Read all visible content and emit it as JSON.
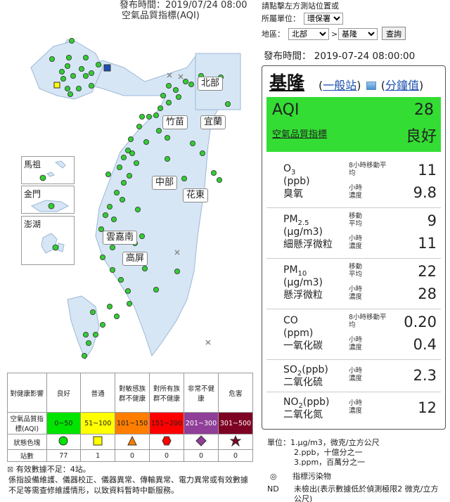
{
  "header": {
    "publish_time": "發布時間：2019/07/24 08:00",
    "subtitle": "空氣品質指標(AQI)"
  },
  "map": {
    "regions": {
      "north": "北部",
      "zhumiao": "竹苗",
      "yilan": "宜蘭",
      "central": "中部",
      "hualien": "花東",
      "yunchianan": "雲嘉南",
      "kaoping": "高屏"
    },
    "insets": {
      "matsu": "馬祖",
      "kinmen": "金門",
      "penghu": "澎湖"
    },
    "colors": {
      "good": "#33cc33",
      "moderate": "#ffff00",
      "selected": "#1b4faf",
      "land": "#d6e6f5"
    }
  },
  "legend": {
    "health_header": "對健康影響",
    "levels": [
      "良好",
      "普通",
      "對敏感族群不健康",
      "對所有族群不健康",
      "非常不健康",
      "危害"
    ],
    "aqi_label": "空氣品質指標(AQI)",
    "ranges": [
      "0~50",
      "51~100",
      "101~150",
      "151~200",
      "201~300",
      "301~500"
    ],
    "status_label": "狀態色塊",
    "count_label": "站數",
    "counts": [
      "77",
      "1",
      "0",
      "0",
      "0",
      "0"
    ],
    "colors": [
      "#00e400",
      "#ffff00",
      "#ff7e00",
      "#ff0000",
      "#8f3f97",
      "#7e0023"
    ],
    "symbols": [
      "circle",
      "square",
      "triangle",
      "hexagon",
      "diamond",
      "star"
    ]
  },
  "footer": {
    "invalid_note": "有效數據不足：4站。",
    "maintenance_note": "係指設備維護、儀器校正、儀器異常、傳輸異常、電力異常或有效數據不足等需查修維護情形，以致資料暫時中斷服務。"
  },
  "controls": {
    "instruction": "請點擊左方測站位置或",
    "agency_label": "所屬單位：",
    "agency_value": "環保署",
    "area_label": "地區：",
    "area_value": "北部",
    "arrow": ">",
    "station_value": "基隆",
    "query_button": "查詢"
  },
  "panel": {
    "publish_time": "發布時間： 2019-07-24 08:00:00",
    "station": "基隆",
    "link_general": "一般站",
    "link_minute": "分鐘值",
    "aqi_label": "AQI",
    "aqi_value": "28",
    "aqi_name": "空氣品質指標",
    "aqi_status": "良好",
    "pollutants": [
      {
        "name1": "O3",
        "unit": "(ppb)",
        "cname": "臭氧",
        "label1": "8小時移動平均",
        "val1": "11",
        "label2": "小時濃度",
        "val2": "9.8"
      },
      {
        "name1": "PM2.5",
        "unit": "(μg/m3)",
        "cname": "細懸浮微粒",
        "label1": "移動平均",
        "val1": "9",
        "label2": "小時濃度",
        "val2": "11"
      },
      {
        "name1": "PM10",
        "unit": "(μg/m3)",
        "cname": "懸浮微粒",
        "label1": "移動平均",
        "val1": "22",
        "label2": "小時濃度",
        "val2": "28"
      },
      {
        "name1": "CO",
        "unit": "(ppm)",
        "cname": "一氧化碳",
        "label1": "8小時移動平均",
        "val1": "0.20",
        "label2": "小時濃度",
        "val2": "0.4"
      }
    ],
    "so2": {
      "name": "SO2(ppb)",
      "cname": "二氧化硫",
      "label": "小時濃度",
      "val": "2.3"
    },
    "no2": {
      "name": "NO2(ppb)",
      "cname": "二氧化氮",
      "label": "小時濃度",
      "val": "12"
    }
  },
  "units": {
    "label": "單位：",
    "u1": "1.μg/m3，微克/立方公尺",
    "u2": "2.ppb，十億分之一",
    "u3": "3.ppm，百萬分之一",
    "indicator_sym": "◎",
    "indicator_text": "指標污染物",
    "nd_label": "ND",
    "nd_text": "未檢出(表示數據低於偵測極限2 微克/立方公尺)"
  }
}
